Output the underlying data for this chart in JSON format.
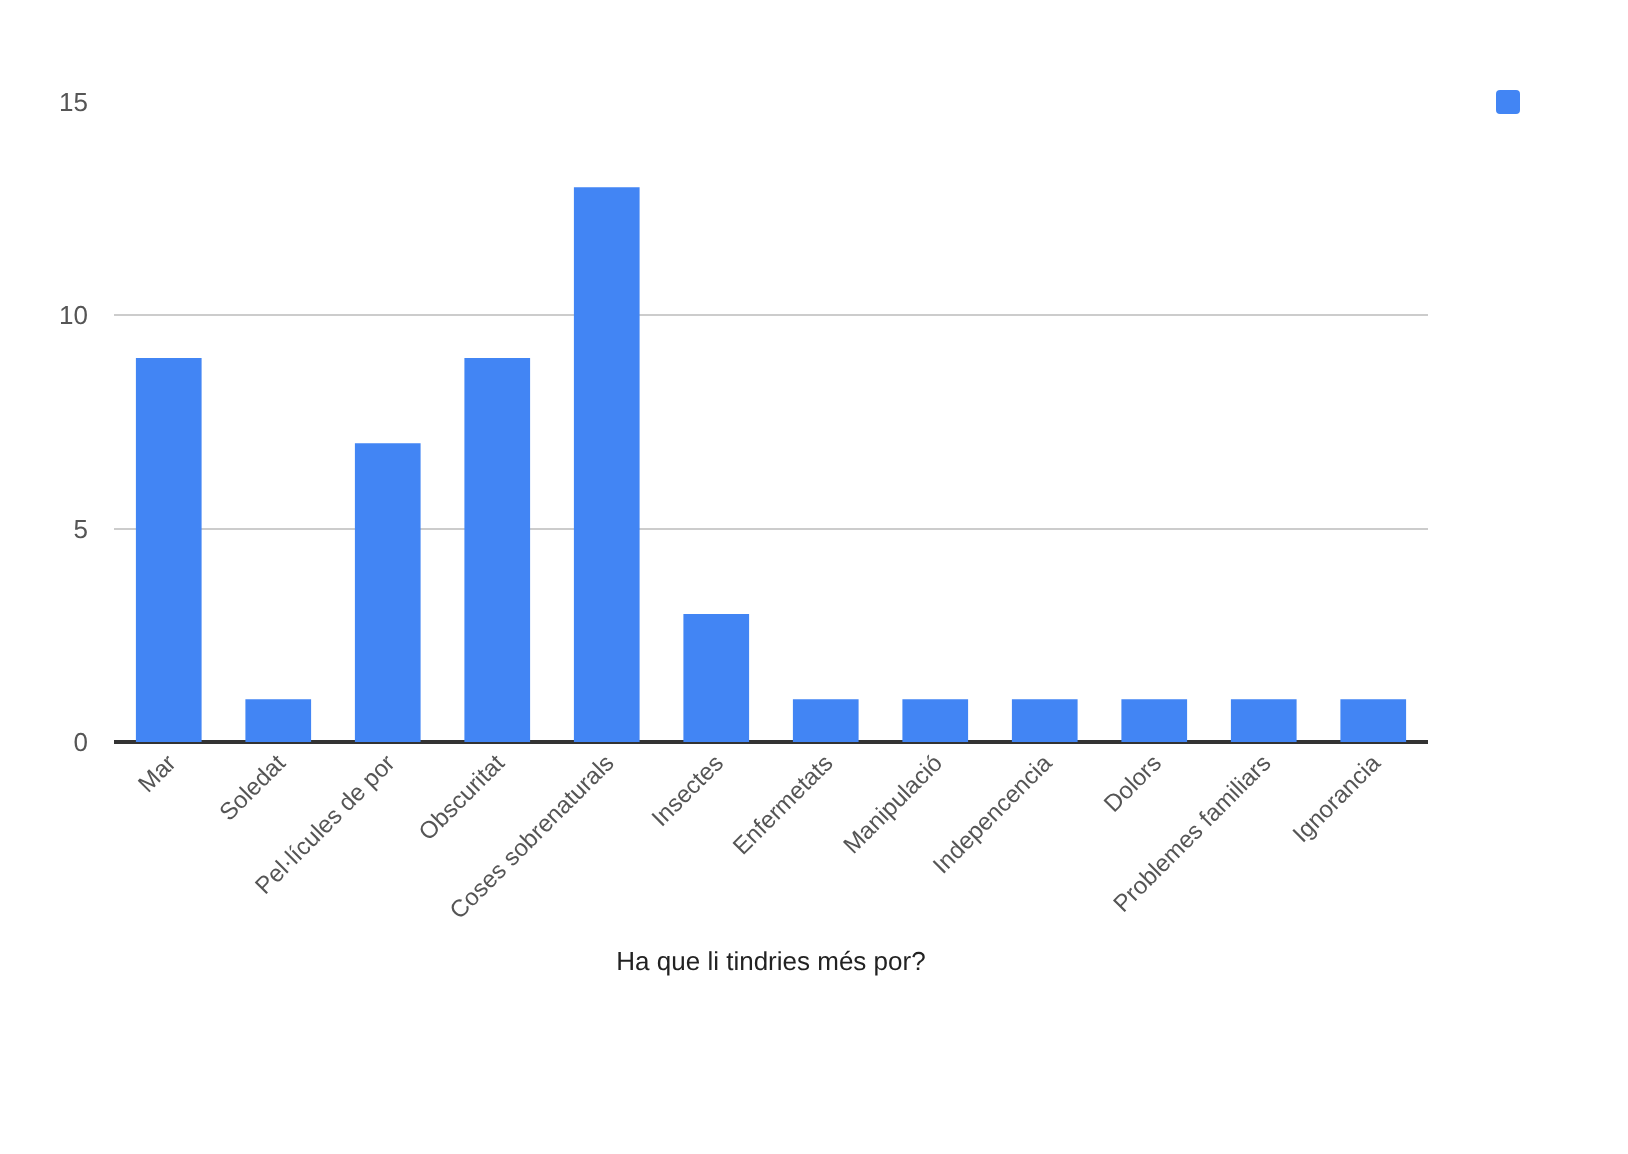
{
  "chart_data": {
    "type": "bar",
    "categories": [
      "Mar",
      "Soledat",
      "Pel·lícules de por",
      "Obscuritat",
      "Coses sobrenaturals",
      "Insectes",
      "Enfermetats",
      "Manipulació",
      "Indepencencia",
      "Dolors",
      "Problemes familiars",
      "Ignorancia"
    ],
    "series": [
      {
        "color": "#4285f4",
        "values": [
          9,
          1,
          7,
          9,
          13,
          3,
          1,
          1,
          1,
          1,
          1,
          1
        ]
      }
    ],
    "xlabel": "Ha que li tindries més por?",
    "ylim": [
      0,
      15
    ],
    "yticks": [
      0,
      5,
      10,
      15
    ],
    "grid": "y"
  }
}
